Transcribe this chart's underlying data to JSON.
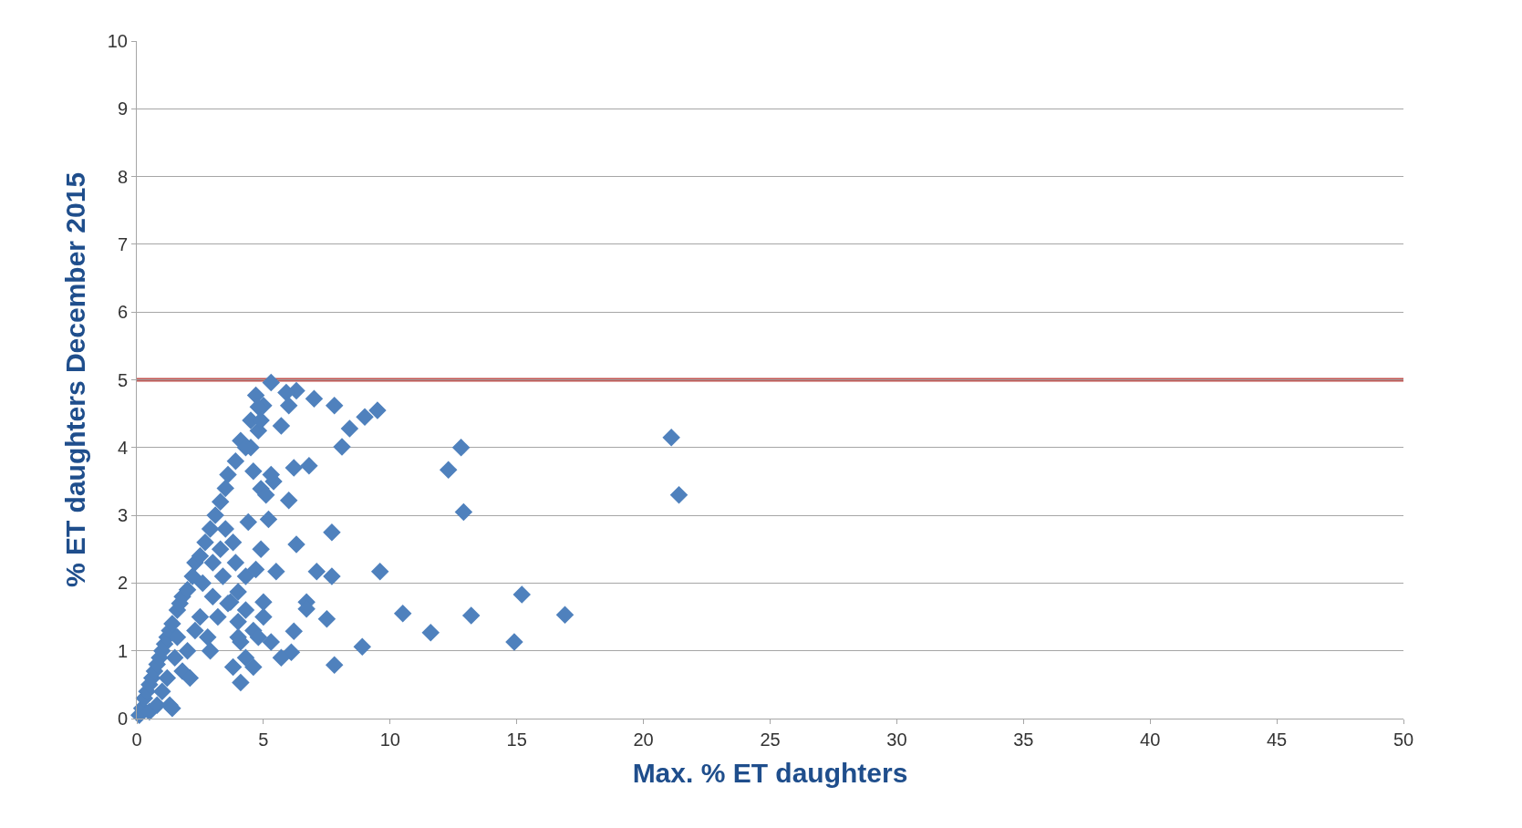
{
  "chart_data": {
    "type": "scatter",
    "xlabel": "Max. % ET daughters",
    "ylabel": "% ET daughters December 2015",
    "x": [
      21.1,
      21.4,
      12.8,
      12.3,
      12.9,
      15.2,
      16.9,
      13.2,
      14.9,
      11.6,
      10.5,
      8.9,
      9.6,
      9.5,
      9.0,
      8.4,
      8.1,
      7.8,
      7.0,
      7.7,
      7.8,
      7.7,
      7.5,
      7.1,
      6.8,
      6.7,
      6.7,
      6.3,
      6.2,
      6.0,
      6.2,
      6.1,
      6.3,
      5.9,
      6.0,
      5.7,
      5.3,
      5.4,
      5.5,
      5.7,
      5.3,
      5.0,
      4.9,
      5.2,
      4.7,
      5.0,
      4.8,
      4.5,
      4.6,
      4.9,
      4.4,
      4.3,
      4.0,
      4.6,
      4.1,
      3.8,
      4.1,
      3.7,
      4.0,
      4.1,
      0.1,
      0.2,
      0.3,
      0.4,
      0.5,
      0.6,
      0.7,
      0.8,
      0.9,
      1.0,
      1.1,
      1.2,
      1.3,
      1.4,
      1.6,
      1.7,
      1.8,
      2.0,
      2.2,
      2.3,
      2.5,
      2.7,
      2.9,
      3.1,
      3.3,
      3.5,
      3.6,
      3.9,
      4.3,
      4.5,
      4.8,
      0.5,
      0.8,
      1.0,
      1.3,
      1.4,
      1.2,
      1.5,
      1.8,
      2.0,
      2.1,
      2.3,
      2.5,
      2.8,
      2.9,
      3.0,
      3.2,
      3.4,
      3.6,
      3.8,
      3.9,
      4.0,
      4.3,
      4.3,
      4.6,
      4.8,
      5.0,
      4.7,
      5.1,
      5.3,
      4.9,
      1.6,
      2.6,
      3.3,
      3.5,
      3.0
    ],
    "values": [
      4.15,
      3.3,
      4.0,
      3.67,
      3.05,
      1.83,
      1.53,
      1.52,
      1.13,
      1.27,
      1.55,
      1.06,
      2.17,
      4.55,
      4.45,
      4.28,
      4.01,
      4.62,
      4.72,
      2.75,
      0.79,
      2.1,
      1.47,
      2.17,
      3.73,
      1.72,
      1.62,
      2.57,
      3.7,
      3.22,
      1.29,
      0.98,
      4.84,
      4.81,
      4.62,
      4.32,
      4.96,
      3.5,
      2.17,
      0.9,
      1.13,
      1.72,
      2.5,
      2.94,
      4.77,
      4.62,
      4.25,
      4.0,
      3.65,
      3.39,
      2.9,
      2.1,
      1.43,
      0.76,
      0.53,
      0.76,
      1.13,
      1.72,
      1.87,
      4.1,
      0.05,
      0.15,
      0.3,
      0.4,
      0.5,
      0.6,
      0.7,
      0.8,
      0.9,
      1.0,
      1.1,
      1.2,
      1.3,
      1.4,
      1.6,
      1.7,
      1.8,
      1.9,
      2.1,
      2.3,
      2.4,
      2.6,
      2.8,
      3.0,
      3.2,
      3.4,
      3.6,
      3.8,
      4.0,
      4.4,
      4.6,
      0.1,
      0.2,
      0.4,
      0.2,
      0.15,
      0.6,
      0.9,
      0.7,
      1.0,
      0.6,
      1.3,
      1.5,
      1.2,
      1.0,
      1.8,
      1.5,
      2.1,
      1.7,
      2.6,
      2.3,
      1.2,
      1.6,
      0.9,
      1.3,
      1.2,
      1.5,
      2.2,
      3.3,
      3.6,
      4.4,
      1.2,
      2.0,
      2.5,
      2.8,
      2.3
    ],
    "color": "#4f81bd",
    "marker": "diamond",
    "xlim": [
      0,
      50
    ],
    "xticks": [
      0,
      5,
      10,
      15,
      20,
      25,
      30,
      35,
      40,
      45,
      50
    ],
    "ylim": [
      0,
      10
    ],
    "yticks": [
      0,
      1,
      2,
      3,
      4,
      5,
      6,
      7,
      8,
      9,
      10
    ],
    "grid": "y",
    "ref_lines": [
      {
        "axis": "y",
        "value": 5,
        "color": "#c0504d"
      }
    ]
  }
}
